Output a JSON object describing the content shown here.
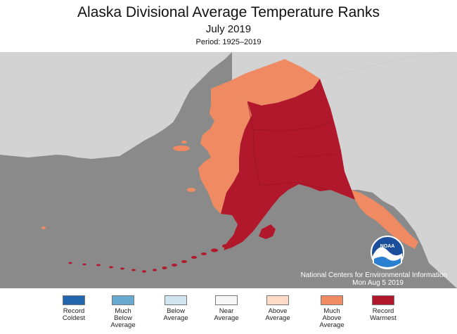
{
  "title": "Alaska Divisional Average Temperature Ranks",
  "subtitle": "July 2019",
  "period": "Period: 1925–2019",
  "credit": {
    "org": "National Centers for Environmental Information",
    "date": "Mon Aug  5 2019",
    "logo_text": "NOAA"
  },
  "colors": {
    "background_land": "#d3d3d3",
    "ocean": "#8a8a8a",
    "record_coldest": "#2166ac",
    "much_below": "#67a9cf",
    "below": "#d1e5f0",
    "near": "#f7f7f7",
    "above": "#fddbc7",
    "much_above": "#ef8a62",
    "record_warmest": "#b2182b"
  },
  "legend": [
    {
      "label": "Record\nColdest",
      "color": "#2166ac"
    },
    {
      "label": "Much\nBelow\nAverage",
      "color": "#67a9cf"
    },
    {
      "label": "Below\nAverage",
      "color": "#d1e5f0"
    },
    {
      "label": "Near\nAverage",
      "color": "#f7f7f7"
    },
    {
      "label": "Above\nAverage",
      "color": "#fddbc7"
    },
    {
      "label": "Much\nAbove\nAverage",
      "color": "#ef8a62"
    },
    {
      "label": "Record\nWarmest",
      "color": "#b2182b"
    }
  ]
}
